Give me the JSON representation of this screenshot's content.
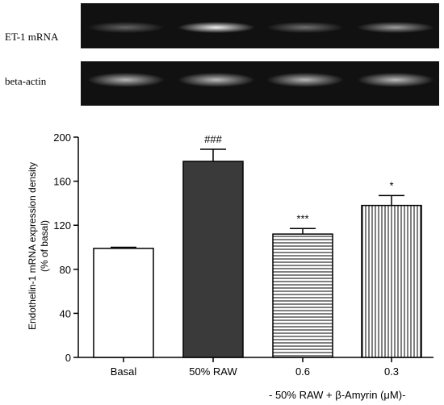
{
  "blots": {
    "et1_label": "ET-1 mRNA",
    "actin_label": "beta-actin",
    "et1_intensity": [
      0.35,
      0.95,
      0.4,
      0.6
    ],
    "actin_intensity": [
      0.7,
      0.72,
      0.7,
      0.72
    ]
  },
  "chart_data": {
    "type": "bar",
    "categories": [
      "Basal",
      "50% RAW",
      "0.6",
      "0.3"
    ],
    "values": [
      99,
      178,
      112,
      138
    ],
    "errors": [
      1,
      11,
      5,
      9
    ],
    "significance": [
      "",
      "###",
      "***",
      "*"
    ],
    "fills": [
      "white",
      "dark",
      "horizontal-lines",
      "vertical-lines"
    ],
    "ylabel": "Endothelin-1 mRNA expression density",
    "ylabel2": "(% of basal)",
    "ylim": [
      0,
      200
    ],
    "yticks": [
      0,
      40,
      80,
      120,
      160,
      200
    ],
    "group_label": "- 50% RAW + β-Amyrin (μM)-"
  },
  "colors": {
    "dark_bar": "#3a3a3a",
    "axis": "#000000"
  }
}
